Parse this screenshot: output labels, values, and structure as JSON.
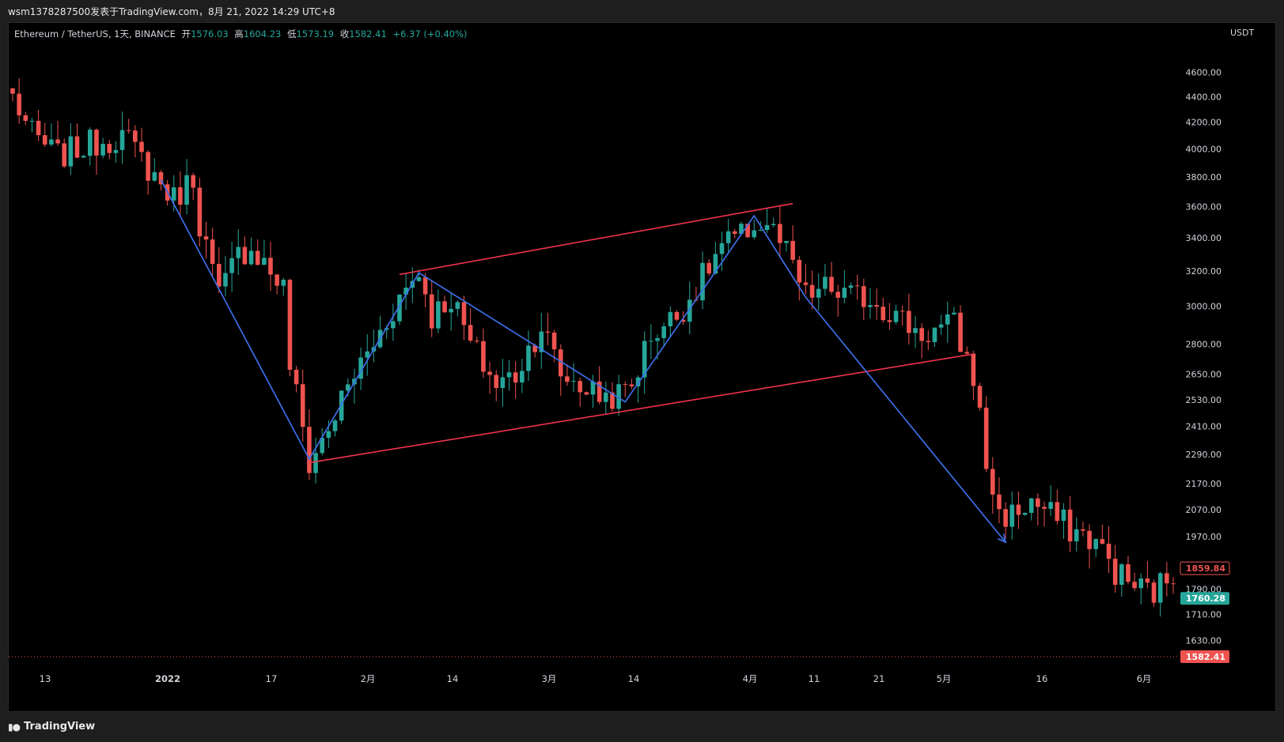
{
  "header": {
    "info": "wsm1378287500发表于TradingView.com，8月 21, 2022 14:29 UTC+8"
  },
  "legend": {
    "symbol": "Ethereum / TetherUS, 1天, BINANCE",
    "open_label": "开",
    "open": "1576.03",
    "high_label": "高",
    "high": "1604.23",
    "low_label": "低",
    "low": "1573.19",
    "close_label": "收",
    "close": "1582.41",
    "change": "+6.37 (+0.40%)"
  },
  "price_axis": {
    "unit": "USDT",
    "ticks": [
      "4600.00",
      "4400.00",
      "4200.00",
      "4000.00",
      "3800.00",
      "3600.00",
      "3400.00",
      "3200.00",
      "3000.00",
      "2800.00",
      "2650.00",
      "2530.00",
      "2410.00",
      "2290.00",
      "2170.00",
      "2070.00",
      "1970.00",
      "1790.00",
      "1710.00",
      "1630.00"
    ],
    "labels": [
      {
        "text": "1859.84",
        "price": 1859.84,
        "style": "outline-red"
      },
      {
        "text": "1760.28",
        "price": 1760.28,
        "style": "green"
      },
      {
        "text": "1582.41",
        "price": 1582.41,
        "style": "red"
      }
    ]
  },
  "time_axis": {
    "ticks": [
      "13",
      "2022",
      "17",
      "2月",
      "14",
      "3月",
      "14",
      "4月",
      "11",
      "21",
      "5月",
      "16",
      "6月"
    ]
  },
  "footer": {
    "brand": "TradingView",
    "logo_icon": "tv-logo-icon"
  },
  "colors": {
    "up": "#26a69a",
    "down": "#ef5350",
    "zigzag": "#3d6ee8",
    "channel": "#f0334a",
    "background": "#000000"
  },
  "chart_data": {
    "type": "candlestick",
    "symbol": "ETHUSDT",
    "interval": "1D",
    "ylim": [
      1560,
      4800
    ],
    "scale": "log",
    "x_range": [
      "2021-12-09",
      "2022-06-12"
    ],
    "last_price": 1582.41,
    "anchors": [
      [
        "2021-12-09",
        4400
      ],
      [
        "2021-12-12",
        4100
      ],
      [
        "2021-12-16",
        3950
      ],
      [
        "2021-12-22",
        4050
      ],
      [
        "2021-12-26",
        4100
      ],
      [
        "2022-01-01",
        3750
      ],
      [
        "2022-01-03",
        3650
      ],
      [
        "2022-01-06",
        3800
      ],
      [
        "2022-01-07",
        3500
      ],
      [
        "2022-01-10",
        3050
      ],
      [
        "2022-01-13",
        3300
      ],
      [
        "2022-01-15",
        3350
      ],
      [
        "2022-01-18",
        3200
      ],
      [
        "2022-01-20",
        3100
      ],
      [
        "2022-01-21",
        2700
      ],
      [
        "2022-01-24",
        2250
      ],
      [
        "2022-01-27",
        2400
      ],
      [
        "2022-01-31",
        2650
      ],
      [
        "2022-02-03",
        2800
      ],
      [
        "2022-02-07",
        3050
      ],
      [
        "2022-02-10",
        3200
      ],
      [
        "2022-02-12",
        2950
      ],
      [
        "2022-02-15",
        3050
      ],
      [
        "2022-02-18",
        2800
      ],
      [
        "2022-02-22",
        2600
      ],
      [
        "2022-02-25",
        2650
      ],
      [
        "2022-03-01",
        2900
      ],
      [
        "2022-03-04",
        2650
      ],
      [
        "2022-03-07",
        2600
      ],
      [
        "2022-03-10",
        2550
      ],
      [
        "2022-03-13",
        2550
      ],
      [
        "2022-03-15",
        2600
      ],
      [
        "2022-03-18",
        2850
      ],
      [
        "2022-03-22",
        2950
      ],
      [
        "2022-03-25",
        3100
      ],
      [
        "2022-03-29",
        3350
      ],
      [
        "2022-04-01",
        3400
      ],
      [
        "2022-04-03",
        3500
      ],
      [
        "2022-04-04",
        3450
      ],
      [
        "2022-04-05",
        3500
      ],
      [
        "2022-04-08",
        3300
      ],
      [
        "2022-04-11",
        3050
      ],
      [
        "2022-04-14",
        3100
      ],
      [
        "2022-04-18",
        3050
      ],
      [
        "2022-04-21",
        3050
      ],
      [
        "2022-04-25",
        2950
      ],
      [
        "2022-04-29",
        2850
      ],
      [
        "2022-05-04",
        2900
      ],
      [
        "2022-05-05",
        2800
      ],
      [
        "2022-05-07",
        2650
      ],
      [
        "2022-05-09",
        2250
      ],
      [
        "2022-05-11",
        2050
      ],
      [
        "2022-05-13",
        2050
      ],
      [
        "2022-05-16",
        2100
      ],
      [
        "2022-05-19",
        2050
      ],
      [
        "2022-05-22",
        2000
      ],
      [
        "2022-05-26",
        1950
      ],
      [
        "2022-05-29",
        1850
      ],
      [
        "2022-06-01",
        1800
      ],
      [
        "2022-06-04",
        1780
      ],
      [
        "2022-06-07",
        1850
      ],
      [
        "2022-06-10",
        1750
      ],
      [
        "2022-06-12",
        1860
      ]
    ],
    "zigzag": [
      [
        "2022-01-01",
        3780
      ],
      [
        "2022-01-24",
        2270
      ],
      [
        "2022-02-10",
        3190
      ],
      [
        "2022-03-14",
        2520
      ],
      [
        "2022-04-03",
        3540
      ],
      [
        "2022-04-11",
        3050
      ],
      [
        "2022-05-12",
        1950
      ]
    ],
    "channel_lines": [
      [
        [
          "2022-02-07",
          3180
        ],
        [
          "2022-04-09",
          3620
        ]
      ],
      [
        [
          "2022-01-24",
          2255
        ],
        [
          "2022-05-07",
          2750
        ]
      ]
    ]
  }
}
